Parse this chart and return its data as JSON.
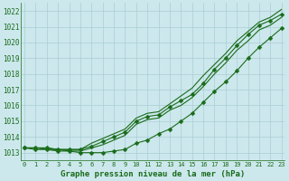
{
  "x": [
    0,
    1,
    2,
    3,
    4,
    5,
    6,
    7,
    8,
    9,
    10,
    11,
    12,
    13,
    14,
    15,
    16,
    17,
    18,
    19,
    20,
    21,
    22,
    23
  ],
  "line1": [
    1013.3,
    1013.3,
    1013.3,
    1013.2,
    1013.2,
    1013.2,
    1013.4,
    1013.7,
    1014.0,
    1014.3,
    1015.0,
    1015.3,
    1015.4,
    1015.9,
    1016.3,
    1016.7,
    1017.4,
    1018.3,
    1019.0,
    1019.8,
    1020.5,
    1021.1,
    1021.4,
    1021.8
  ],
  "line2": [
    1013.3,
    1013.3,
    1013.3,
    1013.2,
    1013.2,
    1013.2,
    1013.6,
    1013.9,
    1014.2,
    1014.5,
    1015.2,
    1015.5,
    1015.6,
    1016.1,
    1016.6,
    1017.1,
    1017.9,
    1018.6,
    1019.3,
    1020.1,
    1020.7,
    1021.3,
    1021.6,
    1022.1
  ],
  "line3": [
    1013.3,
    1013.3,
    1013.2,
    1013.2,
    1013.1,
    1013.1,
    1013.3,
    1013.5,
    1013.8,
    1014.1,
    1014.8,
    1015.1,
    1015.2,
    1015.7,
    1016.0,
    1016.5,
    1017.2,
    1018.0,
    1018.7,
    1019.5,
    1020.1,
    1020.8,
    1021.1,
    1021.6
  ],
  "line4": [
    1013.3,
    1013.2,
    1013.2,
    1013.1,
    1013.1,
    1013.0,
    1013.0,
    1013.0,
    1013.1,
    1013.2,
    1013.6,
    1013.8,
    1014.2,
    1014.5,
    1015.0,
    1015.5,
    1016.2,
    1016.9,
    1017.5,
    1018.2,
    1019.0,
    1019.7,
    1020.3,
    1020.9
  ],
  "line_color": "#1a6b1a",
  "bg_color": "#cce8ec",
  "grid_color": "#aacdd4",
  "ylabel_ticks": [
    1013,
    1014,
    1015,
    1016,
    1017,
    1018,
    1019,
    1020,
    1021,
    1022
  ],
  "ylim": [
    1012.5,
    1022.5
  ],
  "xlim": [
    -0.3,
    23.3
  ],
  "xlabel": "Graphe pression niveau de la mer (hPa)",
  "marker": "D",
  "markersize": 2.5,
  "linewidth": 0.8,
  "figsize": [
    3.2,
    2.0
  ],
  "dpi": 100
}
